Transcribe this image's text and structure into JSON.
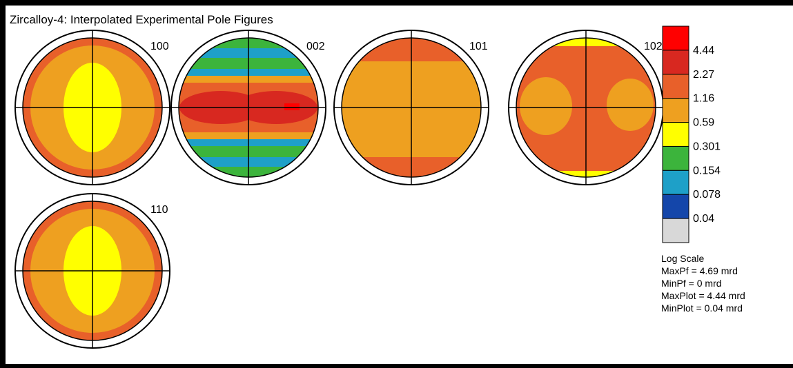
{
  "title": "Zircalloy-4: Interpolated Experimental Pole Figures",
  "chart_data": {
    "type": "heatmap",
    "title": "Zircalloy-4: Interpolated Experimental Pole Figures",
    "figures": [
      {
        "label": "100",
        "pattern": "center-high",
        "levels": {
          "outer": 1.16,
          "main": 0.59,
          "center": 0.301
        }
      },
      {
        "label": "002",
        "pattern": "horizontal-bands",
        "levels": {
          "edge": 0.154,
          "low": 0.078,
          "mid": 0.59,
          "high": 1.16,
          "peak": 2.27,
          "max": 4.44
        }
      },
      {
        "label": "101",
        "pattern": "uniform",
        "levels": {
          "main": 0.59,
          "top": 1.16,
          "bottom": 1.16
        }
      },
      {
        "label": "102",
        "pattern": "x-shape",
        "levels": {
          "main": 1.16,
          "background": 0.59,
          "edge": 0.301
        }
      },
      {
        "label": "110",
        "pattern": "center-high",
        "levels": {
          "outer": 1.16,
          "main": 0.59,
          "center": 0.301
        }
      }
    ],
    "legend": [
      {
        "label": "4.44",
        "color": "#ff0000"
      },
      {
        "label": "2.27",
        "color": "#d82820"
      },
      {
        "label": "1.16",
        "color": "#e8602a"
      },
      {
        "label": "0.59",
        "color": "#eea020"
      },
      {
        "label": "0.301",
        "color": "#ffff00"
      },
      {
        "label": "0.154",
        "color": "#3cb43c"
      },
      {
        "label": "0.078",
        "color": "#1ea0c8"
      },
      {
        "label": "0.04",
        "color": "#1446aa"
      },
      {
        "label": "",
        "color": "#d8d8d8"
      }
    ],
    "scale": "log",
    "notes": [
      "Log Scale",
      "MaxPf = 4.69 mrd",
      "MinPf = 0 mrd",
      "MaxPlot = 4.44 mrd",
      "MinPlot = 0.04 mrd"
    ]
  },
  "colors": {
    "border": "#000000",
    "background": "#ffffff"
  }
}
